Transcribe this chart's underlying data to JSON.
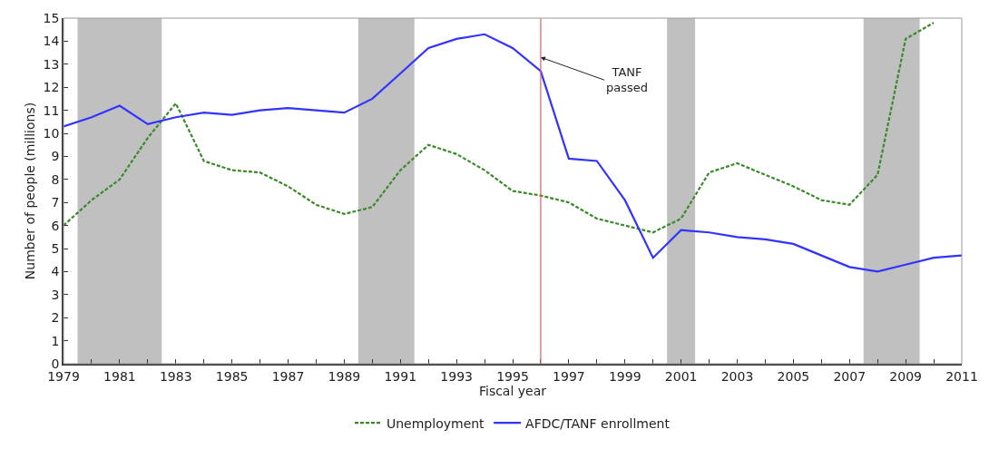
{
  "chart_data": {
    "type": "line",
    "xlabel": "Fiscal year",
    "ylabel": "Number of people (millions)",
    "x": [
      1979,
      1980,
      1981,
      1982,
      1983,
      1984,
      1985,
      1986,
      1987,
      1988,
      1989,
      1990,
      1991,
      1992,
      1993,
      1994,
      1995,
      1996,
      1997,
      1998,
      1999,
      2000,
      2001,
      2002,
      2003,
      2004,
      2005,
      2006,
      2007,
      2008,
      2009,
      2010,
      2011
    ],
    "series": [
      {
        "name": "Unemployment",
        "color": "#3a8a2a",
        "line_style": "dashed",
        "values": [
          6.0,
          7.1,
          8.0,
          9.8,
          11.3,
          8.8,
          8.4,
          8.3,
          7.7,
          6.9,
          6.5,
          6.8,
          8.4,
          9.5,
          9.1,
          8.4,
          7.5,
          7.3,
          7.0,
          6.3,
          6.0,
          5.7,
          6.3,
          8.3,
          8.7,
          8.2,
          7.7,
          7.1,
          6.9,
          8.2,
          14.1,
          14.8,
          null
        ]
      },
      {
        "name": "AFDC/TANF enrollment",
        "color": "#3333ff",
        "line_style": "solid",
        "values": [
          10.3,
          10.7,
          11.2,
          10.4,
          10.7,
          10.9,
          10.8,
          11.0,
          11.1,
          11.0,
          10.9,
          11.5,
          12.6,
          13.7,
          14.1,
          14.3,
          13.7,
          12.7,
          8.9,
          8.8,
          7.1,
          4.6,
          5.8,
          5.7,
          5.5,
          5.4,
          5.2,
          4.7,
          4.2,
          4.0,
          4.3,
          4.6,
          4.7
        ]
      }
    ],
    "xlim": [
      1979,
      2011
    ],
    "xticks": [
      1979,
      {
        "value": 1980,
        "label": null
      },
      1981,
      {
        "value": 1982,
        "label": null
      },
      1983,
      {
        "value": 1984,
        "label": null
      },
      1985,
      {
        "value": 1986,
        "label": null
      },
      1987,
      {
        "value": 1988,
        "label": null
      },
      1989,
      {
        "value": 1990,
        "label": null
      },
      1991,
      {
        "value": 1992,
        "label": null
      },
      1993,
      {
        "value": 1994,
        "label": null
      },
      1995,
      {
        "value": 1996,
        "label": null
      },
      1997,
      {
        "value": 1998,
        "label": null
      },
      1999,
      {
        "value": 2000,
        "label": null
      },
      2001,
      {
        "value": 2002,
        "label": null
      },
      2003,
      {
        "value": 2004,
        "label": null
      },
      2005,
      {
        "value": 2006,
        "label": null
      },
      2007,
      {
        "value": 2008,
        "label": null
      },
      2009,
      {
        "value": 2010,
        "label": null
      },
      2011
    ],
    "ylim": [
      0,
      15
    ],
    "yticks": [
      0,
      1,
      2,
      3,
      4,
      5,
      6,
      7,
      8,
      9,
      10,
      11,
      12,
      13,
      14,
      15
    ],
    "bands": [
      {
        "axis": "x",
        "from": 1979.5,
        "to": 1982.5,
        "color": "#c0c0c0"
      },
      {
        "axis": "x",
        "from": 1989.5,
        "to": 1991.5,
        "color": "#c0c0c0"
      },
      {
        "axis": "x",
        "from": 2000.5,
        "to": 2001.5,
        "color": "#c0c0c0"
      },
      {
        "axis": "x",
        "from": 2007.5,
        "to": 2009.5,
        "color": "#c0c0c0"
      }
    ],
    "ref_lines": [
      {
        "axis": "x",
        "value": 1996,
        "color": "#e06060"
      }
    ],
    "annotations": [
      {
        "text": "TANF passed",
        "x": 1996,
        "y": 13.3
      }
    ],
    "grid": false,
    "legend": "bottom",
    "marker": "none"
  }
}
